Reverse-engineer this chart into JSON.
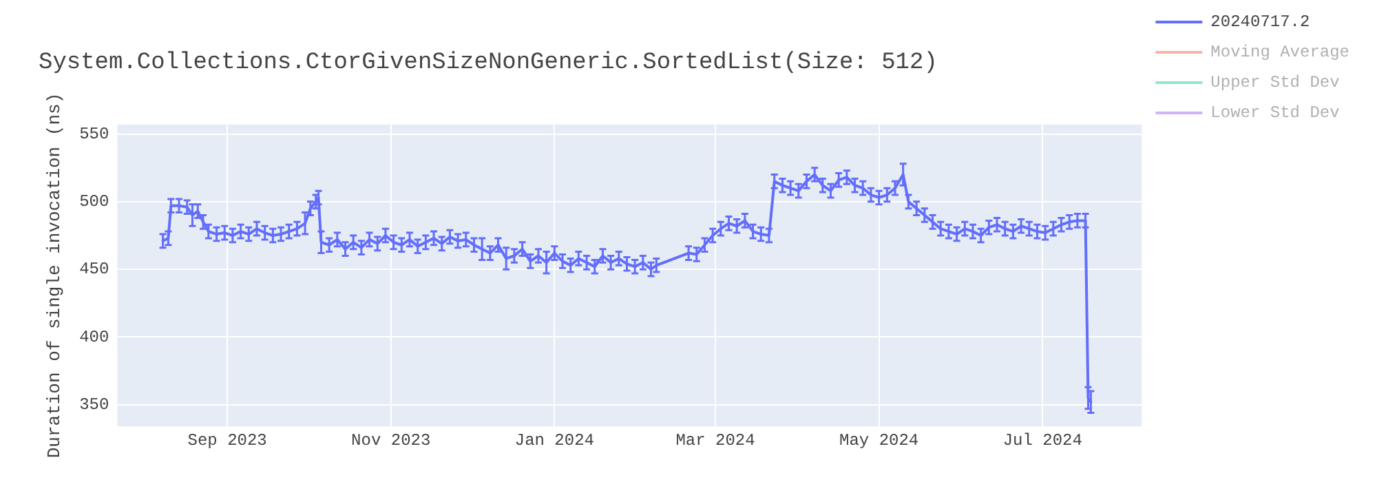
{
  "chart_data": {
    "type": "line",
    "title": "System.Collections.CtorGivenSizeNonGeneric.SortedList(Size: 512)",
    "ylabel": "Duration of single invocation (ns)",
    "x": [
      "2023-08-08",
      "2023-08-10",
      "2023-08-11",
      "2023-08-14",
      "2023-08-17",
      "2023-08-19",
      "2023-08-21",
      "2023-08-23",
      "2023-08-25",
      "2023-08-28",
      "2023-08-31",
      "2023-09-03",
      "2023-09-06",
      "2023-09-09",
      "2023-09-12",
      "2023-09-15",
      "2023-09-18",
      "2023-09-21",
      "2023-09-24",
      "2023-09-27",
      "2023-09-30",
      "2023-10-02",
      "2023-10-04",
      "2023-10-05",
      "2023-10-06",
      "2023-10-09",
      "2023-10-12",
      "2023-10-15",
      "2023-10-18",
      "2023-10-21",
      "2023-10-24",
      "2023-10-27",
      "2023-10-30",
      "2023-11-02",
      "2023-11-05",
      "2023-11-08",
      "2023-11-11",
      "2023-11-14",
      "2023-11-17",
      "2023-11-20",
      "2023-11-23",
      "2023-11-26",
      "2023-11-29",
      "2023-12-02",
      "2023-12-05",
      "2023-12-08",
      "2023-12-11",
      "2023-12-14",
      "2023-12-17",
      "2023-12-20",
      "2023-12-23",
      "2023-12-26",
      "2023-12-29",
      "2024-01-01",
      "2024-01-04",
      "2024-01-07",
      "2024-01-10",
      "2024-01-13",
      "2024-01-16",
      "2024-01-19",
      "2024-01-22",
      "2024-01-25",
      "2024-01-28",
      "2024-01-31",
      "2024-02-03",
      "2024-02-06",
      "2024-02-08",
      "2024-02-20",
      "2024-02-23",
      "2024-02-26",
      "2024-02-29",
      "2024-03-03",
      "2024-03-06",
      "2024-03-09",
      "2024-03-12",
      "2024-03-15",
      "2024-03-18",
      "2024-03-21",
      "2024-03-23",
      "2024-03-26",
      "2024-03-29",
      "2024-04-01",
      "2024-04-04",
      "2024-04-07",
      "2024-04-10",
      "2024-04-13",
      "2024-04-16",
      "2024-04-19",
      "2024-04-22",
      "2024-04-25",
      "2024-04-28",
      "2024-05-01",
      "2024-05-04",
      "2024-05-07",
      "2024-05-10",
      "2024-05-12",
      "2024-05-15",
      "2024-05-18",
      "2024-05-21",
      "2024-05-24",
      "2024-05-27",
      "2024-05-30",
      "2024-06-02",
      "2024-06-05",
      "2024-06-08",
      "2024-06-11",
      "2024-06-14",
      "2024-06-17",
      "2024-06-20",
      "2024-06-23",
      "2024-06-26",
      "2024-06-29",
      "2024-07-02",
      "2024-07-05",
      "2024-07-08",
      "2024-07-11",
      "2024-07-14",
      "2024-07-17",
      "2024-07-18",
      "2024-07-19"
    ],
    "series": [
      {
        "name": "20240717.2",
        "color": "#636efa",
        "values": [
          471,
          473,
          497,
          497,
          496,
          490,
          493,
          485,
          478,
          476,
          477,
          475,
          478,
          476,
          480,
          477,
          475,
          476,
          478,
          480,
          484,
          495,
          500,
          503,
          470,
          468,
          472,
          465,
          470,
          466,
          472,
          469,
          475,
          470,
          468,
          472,
          467,
          470,
          473,
          469,
          474,
          471,
          472,
          468,
          465,
          462,
          468,
          458,
          460,
          465,
          456,
          460,
          455,
          462,
          456,
          453,
          458,
          455,
          452,
          460,
          455,
          458,
          454,
          452,
          455,
          450,
          453,
          462,
          461,
          468,
          475,
          480,
          484,
          482,
          486,
          478,
          476,
          475,
          515,
          512,
          510,
          508,
          515,
          520,
          512,
          508,
          516,
          518,
          512,
          510,
          505,
          503,
          505,
          510,
          520,
          500,
          495,
          490,
          485,
          480,
          478,
          476,
          480,
          478,
          475,
          481,
          483,
          480,
          478,
          482,
          480,
          478,
          477,
          480,
          483,
          485,
          486,
          486,
          355,
          352
        ],
        "errors": [
          5,
          5,
          5,
          5,
          5,
          8,
          5,
          5,
          5,
          5,
          5,
          5,
          5,
          5,
          5,
          5,
          5,
          5,
          5,
          5,
          8,
          5,
          5,
          5,
          8,
          5,
          5,
          5,
          5,
          5,
          5,
          5,
          5,
          5,
          5,
          5,
          5,
          5,
          5,
          5,
          5,
          5,
          5,
          5,
          8,
          5,
          5,
          8,
          5,
          5,
          5,
          5,
          8,
          5,
          5,
          5,
          5,
          5,
          5,
          5,
          5,
          5,
          5,
          5,
          5,
          5,
          5,
          5,
          5,
          5,
          5,
          5,
          5,
          5,
          5,
          5,
          5,
          5,
          5,
          5,
          5,
          5,
          5,
          5,
          5,
          5,
          5,
          5,
          5,
          5,
          5,
          5,
          5,
          5,
          8,
          5,
          5,
          5,
          5,
          5,
          5,
          5,
          5,
          5,
          5,
          5,
          5,
          5,
          5,
          5,
          5,
          5,
          5,
          5,
          5,
          5,
          5,
          5,
          8,
          8
        ]
      },
      {
        "name": "Moving Average",
        "color": "#f7b3a6",
        "values": [
          null,
          null,
          null,
          null,
          null,
          null,
          null,
          null,
          null,
          null,
          null,
          null,
          null,
          null,
          null,
          null,
          null,
          null,
          null,
          null,
          null,
          null,
          null,
          null,
          null,
          null,
          null,
          null,
          null,
          null,
          null,
          null,
          null,
          null,
          null,
          null,
          null,
          null,
          null,
          null,
          null,
          null,
          null,
          null,
          null,
          null,
          null,
          null,
          null,
          null,
          null,
          null,
          null,
          null,
          null,
          null,
          null,
          null,
          null,
          null,
          null,
          null,
          null,
          null,
          null,
          null,
          null,
          null,
          null,
          null,
          null,
          null,
          null,
          null,
          null,
          null,
          null,
          null,
          null,
          null,
          null,
          null,
          null,
          null,
          null,
          null,
          null,
          null,
          null,
          null,
          null,
          null,
          null,
          null,
          null,
          null,
          null,
          null,
          null,
          null,
          null,
          null,
          null,
          null,
          null,
          null,
          null,
          null,
          null,
          null,
          null,
          null,
          null,
          null,
          null,
          null,
          null,
          null,
          null,
          null
        ]
      },
      {
        "name": "Upper Std Dev",
        "color": "#8ee6cb",
        "values": [
          null,
          null,
          null,
          null,
          null,
          null,
          null,
          null,
          null,
          null,
          null,
          null,
          null,
          null,
          null,
          null,
          null,
          null,
          null,
          null,
          null,
          null,
          null,
          null,
          null,
          null,
          null,
          null,
          null,
          null,
          null,
          null,
          null,
          null,
          null,
          null,
          null,
          null,
          null,
          null,
          null,
          null,
          null,
          null,
          null,
          null,
          null,
          null,
          null,
          null,
          null,
          null,
          null,
          null,
          null,
          null,
          null,
          null,
          null,
          null,
          null,
          null,
          null,
          null,
          null,
          null,
          null,
          null,
          null,
          null,
          null,
          null,
          null,
          null,
          null,
          null,
          null,
          null,
          null,
          null,
          null,
          null,
          null,
          null,
          null,
          null,
          null,
          null,
          null,
          null,
          null,
          null,
          null,
          null,
          null,
          null,
          null,
          null,
          null,
          null,
          null,
          null,
          null,
          null,
          null,
          null,
          null,
          null,
          null,
          null,
          null,
          null,
          null,
          null,
          null,
          null,
          null,
          null,
          null,
          null
        ]
      },
      {
        "name": "Lower Std Dev",
        "color": "#d2b3fb",
        "values": [
          null,
          null,
          null,
          null,
          null,
          null,
          null,
          null,
          null,
          null,
          null,
          null,
          null,
          null,
          null,
          null,
          null,
          null,
          null,
          null,
          null,
          null,
          null,
          null,
          null,
          null,
          null,
          null,
          null,
          null,
          null,
          null,
          null,
          null,
          null,
          null,
          null,
          null,
          null,
          null,
          null,
          null,
          null,
          null,
          null,
          null,
          null,
          null,
          null,
          null,
          null,
          null,
          null,
          null,
          null,
          null,
          null,
          null,
          null,
          null,
          null,
          null,
          null,
          null,
          null,
          null,
          null,
          null,
          null,
          null,
          null,
          null,
          null,
          null,
          null,
          null,
          null,
          null,
          null,
          null,
          null,
          null,
          null,
          null,
          null,
          null,
          null,
          null,
          null,
          null,
          null,
          null,
          null,
          null,
          null,
          null,
          null,
          null,
          null,
          null,
          null,
          null,
          null,
          null,
          null,
          null,
          null,
          null,
          null,
          null,
          null,
          null,
          null,
          null,
          null,
          null,
          null,
          null,
          null,
          null
        ]
      }
    ],
    "xlim": [
      "2023-07-22",
      "2024-08-07"
    ],
    "xticks": [
      {
        "value": "2023-09-01",
        "label": "Sep 2023"
      },
      {
        "value": "2023-11-01",
        "label": "Nov 2023"
      },
      {
        "value": "2024-01-01",
        "label": "Jan 2024"
      },
      {
        "value": "2024-03-01",
        "label": "Mar 2024"
      },
      {
        "value": "2024-05-01",
        "label": "May 2024"
      },
      {
        "value": "2024-07-01",
        "label": "Jul 2024"
      }
    ],
    "ylim": [
      334,
      557
    ],
    "yticks": [
      350,
      400,
      450,
      500,
      550
    ],
    "grid": true,
    "legend": "right",
    "marker": "none",
    "line_style": "solid"
  }
}
